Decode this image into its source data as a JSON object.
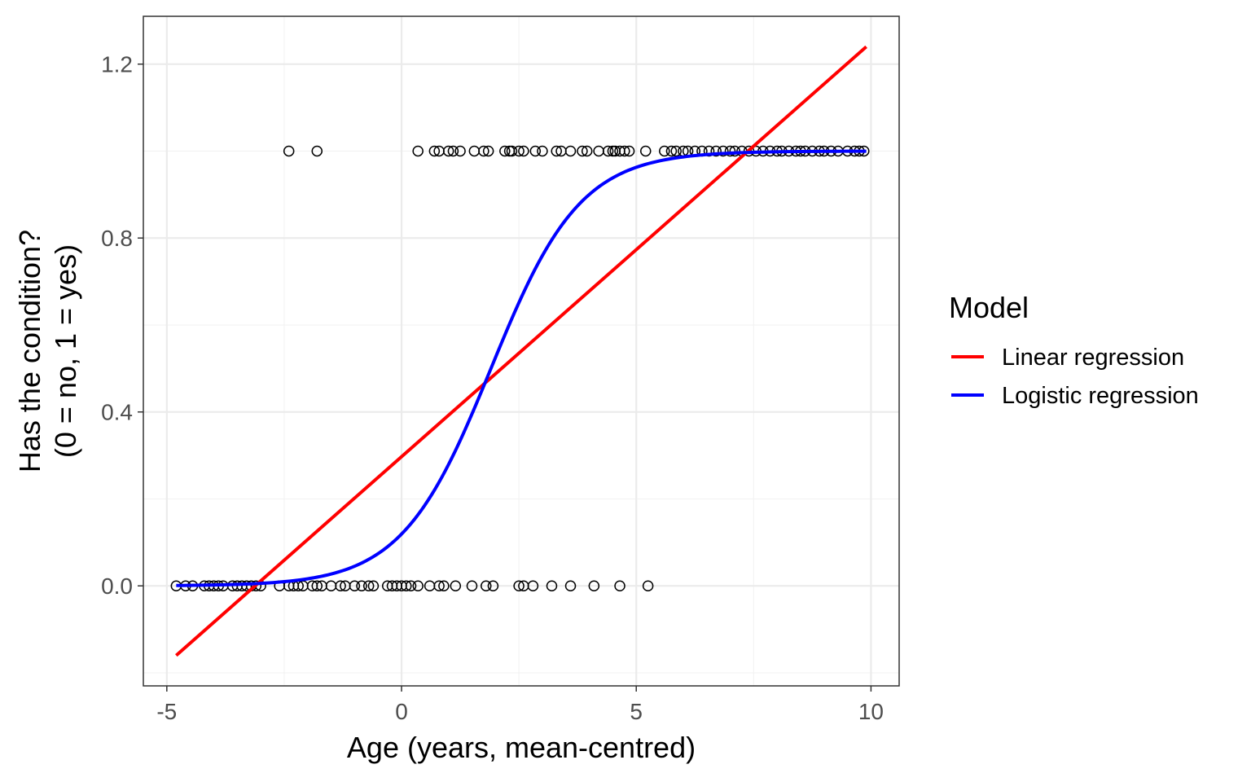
{
  "chart_data": {
    "type": "scatter",
    "xlabel": "Age (years, mean-centred)",
    "ylabel_lines": [
      "Has the condition?",
      "(0 = no, 1 = yes)"
    ],
    "xlim": [
      -5.5,
      10.6
    ],
    "ylim": [
      -0.23,
      1.31
    ],
    "x_ticks": [
      -5,
      0,
      5,
      10
    ],
    "x_tick_labels": [
      "-5",
      "0",
      "5",
      "10"
    ],
    "y_ticks": [
      0.0,
      0.4,
      0.8,
      1.2
    ],
    "y_tick_labels": [
      "0.0",
      "0.4",
      "0.8",
      "1.2"
    ],
    "grid": true,
    "legend": {
      "title": "Model",
      "position": "right",
      "entries": [
        {
          "label": "Linear regression",
          "color": "#ff0000"
        },
        {
          "label": "Logistic regression",
          "color": "#0000ff"
        }
      ]
    },
    "points_y0_x": [
      -4.8,
      -4.6,
      -4.45,
      -4.2,
      -4.1,
      -4.0,
      -3.9,
      -3.8,
      -3.6,
      -3.5,
      -3.4,
      -3.3,
      -3.2,
      -3.1,
      -3.0,
      -2.6,
      -2.4,
      -2.3,
      -2.2,
      -2.1,
      -1.9,
      -1.8,
      -1.7,
      -1.5,
      -1.3,
      -1.2,
      -1.0,
      -0.85,
      -0.7,
      -0.6,
      -0.3,
      -0.2,
      -0.1,
      0.0,
      0.1,
      0.2,
      0.35,
      0.6,
      0.8,
      0.9,
      1.15,
      1.5,
      1.8,
      1.95,
      2.5,
      2.6,
      2.8,
      3.2,
      3.6,
      4.1,
      4.65,
      5.25
    ],
    "points_y1_x": [
      -2.4,
      -1.8,
      0.35,
      0.7,
      0.8,
      1.0,
      1.1,
      1.25,
      1.55,
      1.75,
      1.85,
      2.2,
      2.3,
      2.35,
      2.5,
      2.6,
      2.85,
      3.0,
      3.3,
      3.4,
      3.6,
      3.85,
      3.95,
      4.2,
      4.4,
      4.5,
      4.55,
      4.65,
      4.75,
      4.85,
      5.2,
      5.6,
      5.75,
      5.85,
      6.0,
      6.1,
      6.25,
      6.4,
      6.55,
      6.7,
      6.85,
      7.0,
      7.1,
      7.25,
      7.4,
      7.55,
      7.7,
      7.85,
      8.0,
      8.1,
      8.25,
      8.4,
      8.5,
      8.6,
      8.75,
      8.9,
      9.0,
      9.15,
      9.3,
      9.5,
      9.65,
      9.75,
      9.85
    ],
    "linear_regression": {
      "x": [
        -4.8,
        9.9
      ],
      "y": [
        -0.16,
        1.24
      ]
    },
    "logistic_regression": {
      "x_range": [
        -4.8,
        9.9
      ],
      "intercept": -2.0,
      "slope": 1.05
    }
  }
}
